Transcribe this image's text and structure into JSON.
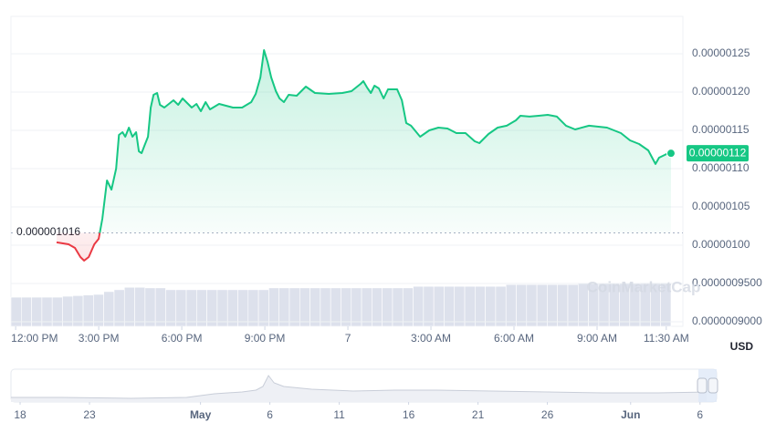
{
  "chart_data": [
    {
      "type": "line",
      "x": [
        1.48,
        1.91,
        2.14,
        2.34,
        2.47,
        2.64,
        2.84,
        3.0,
        3.13,
        3.3,
        3.46,
        3.63,
        3.73,
        3.86,
        3.96,
        4.09,
        4.22,
        4.35,
        4.45,
        4.55,
        4.65,
        4.78,
        4.88,
        4.98,
        5.11,
        5.21,
        5.37,
        5.7,
        5.87,
        6.03,
        6.36,
        6.53,
        6.69,
        6.86,
        7.02,
        7.35,
        7.85,
        8.18,
        8.51,
        8.67,
        8.84,
        8.97,
        9.1,
        9.23,
        9.4,
        9.53,
        9.69,
        9.86,
        10.15,
        10.48,
        10.81,
        11.31,
        11.8,
        12.13,
        12.46,
        12.56,
        12.69,
        12.83,
        12.96,
        13.12,
        13.29,
        13.45,
        13.78,
        13.95,
        14.11,
        14.28,
        14.61,
        14.94,
        15.27,
        15.6,
        15.92,
        16.25,
        16.58,
        16.75,
        17.08,
        17.41,
        17.74,
        18.07,
        18.23,
        18.56,
        18.89,
        19.22,
        19.55,
        19.88,
        20.21,
        20.71,
        21.36,
        21.86,
        22.19,
        22.52,
        22.85,
        23.11,
        23.24,
        23.51,
        23.67
      ],
      "values": [
        1.0036e-06,
        1.0012e-06,
        9.964e-07,
        9.845e-07,
        9.798e-07,
        9.845e-07,
        1.0012e-06,
        1.0083e-06,
        1.0345e-06,
        1.0845e-06,
        1.0726e-06,
        1.1e-06,
        1.144e-06,
        1.1476e-06,
        1.1417e-06,
        1.1536e-06,
        1.1417e-06,
        1.1476e-06,
        1.1226e-06,
        1.1202e-06,
        1.1298e-06,
        1.1417e-06,
        1.1798e-06,
        1.1964e-06,
        1.1988e-06,
        1.1833e-06,
        1.1798e-06,
        1.1893e-06,
        1.1833e-06,
        1.1917e-06,
        1.1798e-06,
        1.1845e-06,
        1.175e-06,
        1.1869e-06,
        1.1774e-06,
        1.1845e-06,
        1.1798e-06,
        1.1798e-06,
        1.1869e-06,
        1.1976e-06,
        1.219e-06,
        1.2548e-06,
        1.2393e-06,
        1.219e-06,
        1.2012e-06,
        1.1917e-06,
        1.1869e-06,
        1.1964e-06,
        1.1952e-06,
        1.2071e-06,
        1.1988e-06,
        1.1976e-06,
        1.1988e-06,
        1.2012e-06,
        1.2107e-06,
        1.2143e-06,
        1.206e-06,
        1.1988e-06,
        1.2083e-06,
        1.2048e-06,
        1.1917e-06,
        1.2036e-06,
        1.2036e-06,
        1.1893e-06,
        1.1595e-06,
        1.156e-06,
        1.1417e-06,
        1.15e-06,
        1.1536e-06,
        1.1524e-06,
        1.1464e-06,
        1.1464e-06,
        1.1357e-06,
        1.1333e-06,
        1.1452e-06,
        1.1536e-06,
        1.156e-06,
        1.1631e-06,
        1.169e-06,
        1.1679e-06,
        1.169e-06,
        1.1702e-06,
        1.1679e-06,
        1.156e-06,
        1.1512e-06,
        1.156e-06,
        1.1536e-06,
        1.1464e-06,
        1.1369e-06,
        1.1321e-06,
        1.1238e-06,
        1.106e-06,
        1.1143e-06,
        1.119e-06,
        1.12e-06
      ],
      "color": "#16c784",
      "down_color": "#ea3943",
      "baseline": {
        "value": 1.016e-06,
        "label": "0.000001016"
      },
      "last_value_label": "0.00000112",
      "xlim": [
        -0.17,
        24.1
      ],
      "xticks": [
        {
          "value": 0,
          "label": "12:00 PM"
        },
        {
          "value": 3,
          "label": "3:00 PM"
        },
        {
          "value": 6,
          "label": "6:00 PM"
        },
        {
          "value": 9,
          "label": "9:00 PM"
        },
        {
          "value": 12,
          "label": "7"
        },
        {
          "value": 15,
          "label": "3:00 AM"
        },
        {
          "value": 18,
          "label": "6:00 AM"
        },
        {
          "value": 21,
          "label": "9:00 AM"
        },
        {
          "value": 23.5,
          "label": "11:30 AM"
        }
      ],
      "ylim": [
        8.94e-07,
        1.2988e-06
      ],
      "yticks": [
        {
          "value": 1.25e-06,
          "label": "0.00000125"
        },
        {
          "value": 1.2e-06,
          "label": "0.00000120"
        },
        {
          "value": 1.15e-06,
          "label": "0.00000115"
        },
        {
          "value": 1.1e-06,
          "label": "0.00000110"
        },
        {
          "value": 1.05e-06,
          "label": "0.00000105"
        },
        {
          "value": 1e-06,
          "label": "0.00000100"
        },
        {
          "value": 9.5e-07,
          "label": "0.0000009500"
        },
        {
          "value": 9e-07,
          "label": "0.0000009000"
        }
      ],
      "grid": true,
      "y2lim": [
        0,
        100
      ],
      "volume": {
        "axis": "y2",
        "color": "#dde1ec",
        "values": [
          9.4,
          9.4,
          9.4,
          9.4,
          9.4,
          9.7,
          9.9,
          10.1,
          10.3,
          11.2,
          11.8,
          12.6,
          12.6,
          12.4,
          12.4,
          11.8,
          11.8,
          11.8,
          11.8,
          11.8,
          11.8,
          11.8,
          11.8,
          11.8,
          11.8,
          12.4,
          12.4,
          12.4,
          12.4,
          12.4,
          12.4,
          12.4,
          12.4,
          12.4,
          12.4,
          12.4,
          12.4,
          12.4,
          12.4,
          12.9,
          12.9,
          12.9,
          12.9,
          12.9,
          12.9,
          12.9,
          12.9,
          12.9,
          13.5,
          13.5,
          13.5,
          13.5,
          13.5,
          13.5,
          13.5,
          13.8,
          13.8,
          13.8,
          13.8,
          13.8,
          13.8,
          14.1,
          14.1,
          14.1
        ]
      },
      "watermark": "CoinMarketCap",
      "currency": "USD"
    },
    {
      "type": "area",
      "x": [
        -0.66,
        3,
        8,
        12,
        13,
        14,
        16,
        17,
        17.5,
        17.9,
        18.3,
        19,
        21,
        24,
        27,
        30,
        34,
        38,
        42,
        46,
        49.5
      ],
      "values": [
        13.9,
        13.9,
        11.1,
        13.9,
        19.4,
        25,
        30.6,
        36.1,
        47.2,
        80.6,
        58.3,
        47.2,
        38.9,
        33.3,
        36.1,
        36.1,
        33.3,
        30.6,
        27.8,
        27.8,
        30.6
      ],
      "color": "#c8cdd8",
      "xlim": [
        -0.66,
        50.2
      ],
      "ylim": [
        0,
        100
      ],
      "xticks": [
        {
          "value": 0,
          "label": "18"
        },
        {
          "value": 5,
          "label": "23"
        },
        {
          "value": 13,
          "label": "May"
        },
        {
          "value": 18,
          "label": "6"
        },
        {
          "value": 23,
          "label": "11"
        },
        {
          "value": 28,
          "label": "16"
        },
        {
          "value": 33,
          "label": "21"
        },
        {
          "value": 38,
          "label": "26"
        },
        {
          "value": 44,
          "label": "Jun"
        },
        {
          "value": 49,
          "label": "6"
        }
      ]
    }
  ]
}
